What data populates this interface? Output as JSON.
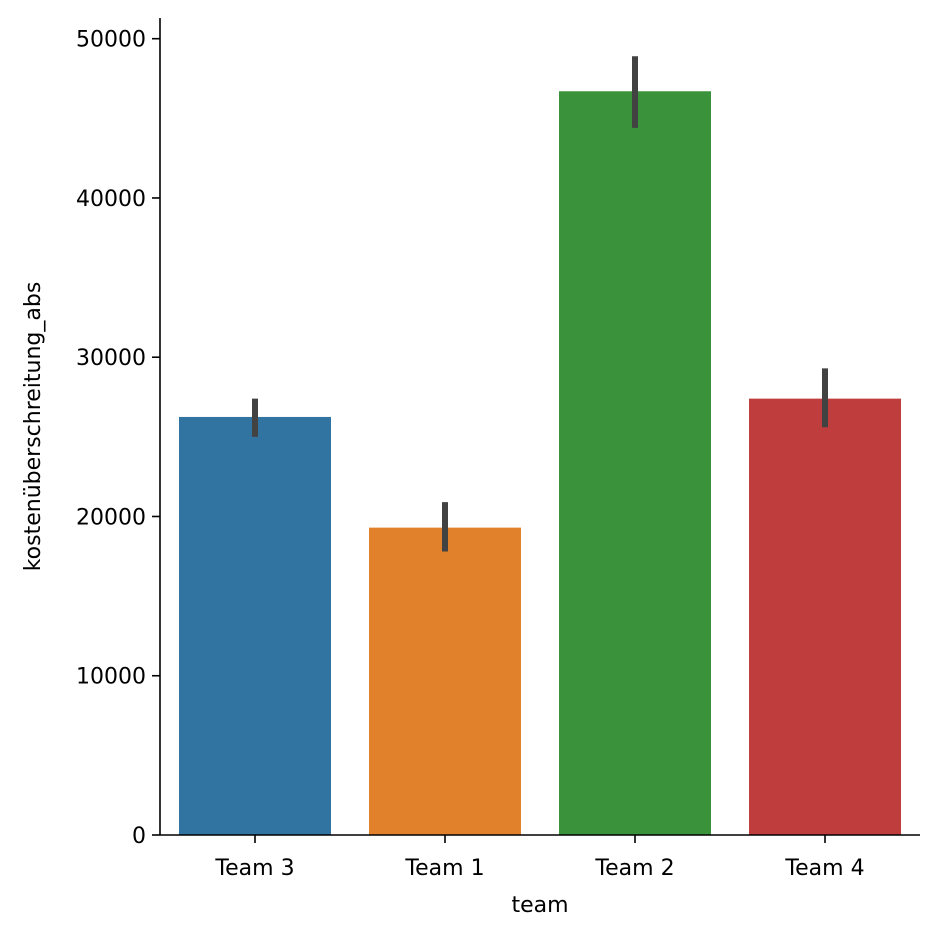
{
  "chart_data": {
    "type": "bar",
    "xlabel": "team",
    "ylabel": "kostenüberschreitung_abs",
    "categories": [
      "Team 3",
      "Team 1",
      "Team 2",
      "Team 4"
    ],
    "values": [
      26250,
      19300,
      46700,
      27400
    ],
    "error_bars": [
      [
        25000,
        27400
      ],
      [
        17800,
        20900
      ],
      [
        44400,
        48900
      ],
      [
        25600,
        29300
      ]
    ],
    "colors": [
      "#3274a1",
      "#e1812c",
      "#3a923a",
      "#c03d3e"
    ],
    "error_bar_color": "#424242",
    "ylim": [
      0,
      51300
    ],
    "yticks": [
      0,
      10000,
      20000,
      30000,
      40000,
      50000
    ],
    "grid": false
  }
}
